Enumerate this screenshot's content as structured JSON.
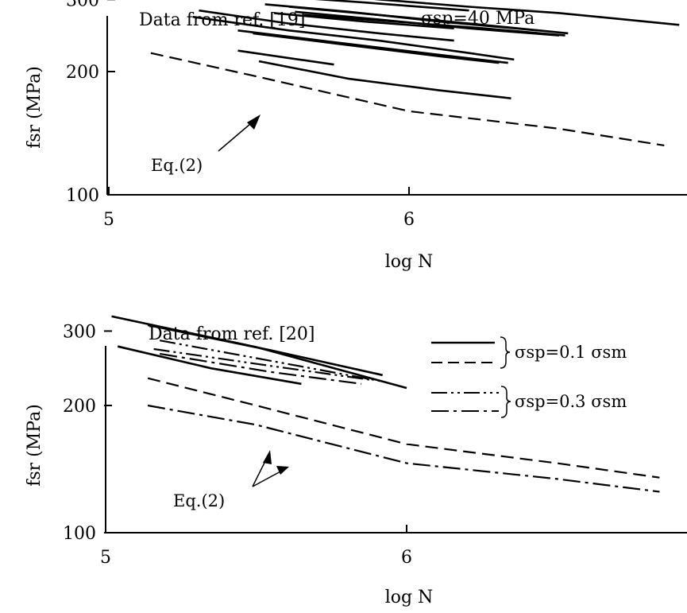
{
  "chart_data": [
    {
      "type": "line",
      "title": "Data from ref. [19]",
      "subtitle": "σsp=40 MPa",
      "xlabel": "log N",
      "ylabel": "fsr (MPa)",
      "xlim": [
        5,
        6.9
      ],
      "ylim": [
        100,
        400
      ],
      "y_scale": "log",
      "x_ticks": [
        "5",
        "6"
      ],
      "y_ticks": [
        "100",
        "200",
        "300"
      ],
      "annotation": "Eq.(2)",
      "grid": false,
      "series": [
        {
          "style": "solid",
          "x": [
            5.58,
            5.9,
            6.2,
            6.5,
            6.9
          ],
          "y": [
            315,
            300,
            288,
            278,
            260
          ]
        },
        {
          "style": "solid",
          "x": [
            5.57,
            5.85,
            6.2
          ],
          "y": [
            305,
            295,
            282
          ]
        },
        {
          "style": "solid",
          "x": [
            5.52,
            5.8,
            6.1,
            6.43
          ],
          "y": [
            292,
            280,
            265,
            252
          ]
        },
        {
          "style": "solid",
          "x": [
            5.6,
            5.9,
            6.2,
            6.53
          ],
          "y": [
            288,
            275,
            262,
            248
          ]
        },
        {
          "style": "solid",
          "x": [
            5.62,
            5.9,
            6.2,
            6.5
          ],
          "y": [
            280,
            268,
            255,
            245
          ]
        },
        {
          "style": "solid",
          "x": [
            5.65,
            5.95,
            6.25,
            6.52
          ],
          "y": [
            275,
            265,
            255,
            245
          ]
        },
        {
          "style": "solid",
          "x": [
            5.55,
            5.85,
            6.15
          ],
          "y": [
            278,
            265,
            255
          ]
        },
        {
          "style": "solid",
          "x": [
            5.3,
            5.6,
            5.9,
            6.15
          ],
          "y": [
            282,
            262,
            248,
            238
          ]
        },
        {
          "style": "solid",
          "x": [
            5.28,
            5.6,
            5.9,
            6.2,
            6.35
          ],
          "y": [
            272,
            252,
            238,
            222,
            214
          ]
        },
        {
          "style": "solid",
          "x": [
            5.43,
            5.75,
            6.05,
            6.33
          ],
          "y": [
            252,
            236,
            222,
            210
          ]
        },
        {
          "style": "solid",
          "x": [
            5.48,
            5.8,
            6.1,
            6.3
          ],
          "y": [
            248,
            232,
            218,
            210
          ]
        },
        {
          "style": "solid",
          "x": [
            5.43,
            5.75
          ],
          "y": [
            225,
            208
          ]
        },
        {
          "style": "solid",
          "x": [
            5.5,
            5.8,
            6.1,
            6.34
          ],
          "y": [
            212,
            192,
            180,
            172
          ]
        },
        {
          "style": "dashed",
          "name": "Eq.(2)",
          "x": [
            5.14,
            5.5,
            6.0,
            6.5,
            6.85
          ],
          "y": [
            222,
            194,
            160,
            145,
            132
          ]
        }
      ]
    },
    {
      "type": "line",
      "title": "Data from ref. [20]",
      "xlabel": "log N",
      "ylabel": "fsr (MPa)",
      "xlim": [
        5,
        6.9
      ],
      "ylim": [
        100,
        400
      ],
      "y_scale": "log",
      "x_ticks": [
        "5",
        "6"
      ],
      "y_ticks": [
        "100",
        "200",
        "300"
      ],
      "annotation": "Eq.(2)",
      "grid": false,
      "legend": {
        "placement": "top-right",
        "entries": [
          {
            "styles": [
              "solid",
              "dashed"
            ],
            "label": "σsp=0.1 σsm"
          },
          {
            "styles": [
              "dashdotdot",
              "dashdot"
            ],
            "label": "σsp=0.3 σsm"
          }
        ]
      },
      "series": [
        {
          "style": "solid",
          "x": [
            5.02,
            5.5,
            6.0
          ],
          "y": [
            325,
            275,
            220
          ]
        },
        {
          "style": "solid",
          "x": [
            5.14,
            5.55,
            5.92
          ],
          "y": [
            310,
            270,
            236
          ]
        },
        {
          "style": "solid",
          "x": [
            5.04,
            5.35,
            5.65
          ],
          "y": [
            276,
            245,
            225
          ]
        },
        {
          "style": "dashdotdot",
          "x": [
            5.18,
            5.55,
            5.92
          ],
          "y": [
            285,
            255,
            228
          ]
        },
        {
          "style": "dashdotdot",
          "x": [
            5.16,
            5.55,
            5.88
          ],
          "y": [
            272,
            248,
            230
          ]
        },
        {
          "style": "dashdot",
          "x": [
            5.18,
            5.55,
            5.85
          ],
          "y": [
            265,
            240,
            225
          ]
        },
        {
          "style": "dashed",
          "x": [
            5.14,
            5.5,
            6.0,
            6.5,
            6.84
          ],
          "y": [
            232,
            200,
            162,
            146,
            135
          ]
        },
        {
          "style": "dashdot",
          "x": [
            5.14,
            5.5,
            6.0,
            6.5,
            6.84
          ],
          "y": [
            200,
            180,
            146,
            134,
            125
          ]
        }
      ]
    }
  ]
}
